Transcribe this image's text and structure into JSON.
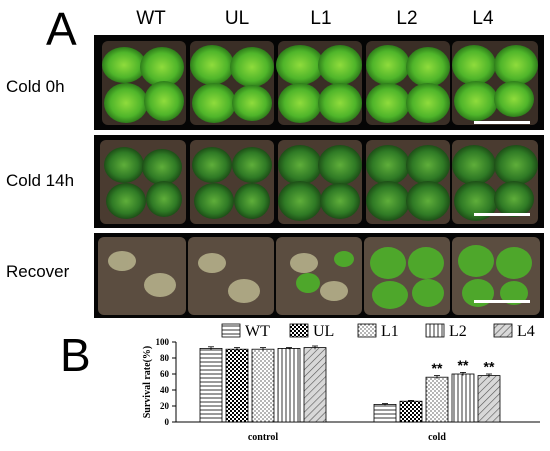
{
  "panel_a": {
    "letter": "A",
    "columns": [
      "WT",
      "UL",
      "L1",
      "L2",
      "L4"
    ],
    "rows": [
      "Cold 0h",
      "Cold 14h",
      "Recover"
    ]
  },
  "panel_b": {
    "letter": "B"
  },
  "chart_data": {
    "type": "bar",
    "ylabel": "Survival rate(%)",
    "ylim": [
      0,
      100
    ],
    "yticks": [
      0,
      20,
      40,
      60,
      80,
      100
    ],
    "categories": [
      "control",
      "cold"
    ],
    "series": [
      {
        "name": "WT",
        "values": [
          92,
          22
        ],
        "errors": [
          2,
          1
        ],
        "sig": [
          "",
          ""
        ]
      },
      {
        "name": "UL",
        "values": [
          91,
          26
        ],
        "errors": [
          2,
          1
        ],
        "sig": [
          "",
          ""
        ]
      },
      {
        "name": "L1",
        "values": [
          91,
          56
        ],
        "errors": [
          2,
          2
        ],
        "sig": [
          "",
          "**"
        ]
      },
      {
        "name": "L2",
        "values": [
          92,
          60
        ],
        "errors": [
          1,
          2
        ],
        "sig": [
          "",
          "**"
        ]
      },
      {
        "name": "L4",
        "values": [
          93,
          58
        ],
        "errors": [
          2,
          2
        ],
        "sig": [
          "",
          "**"
        ]
      }
    ],
    "legend_position": "top"
  }
}
